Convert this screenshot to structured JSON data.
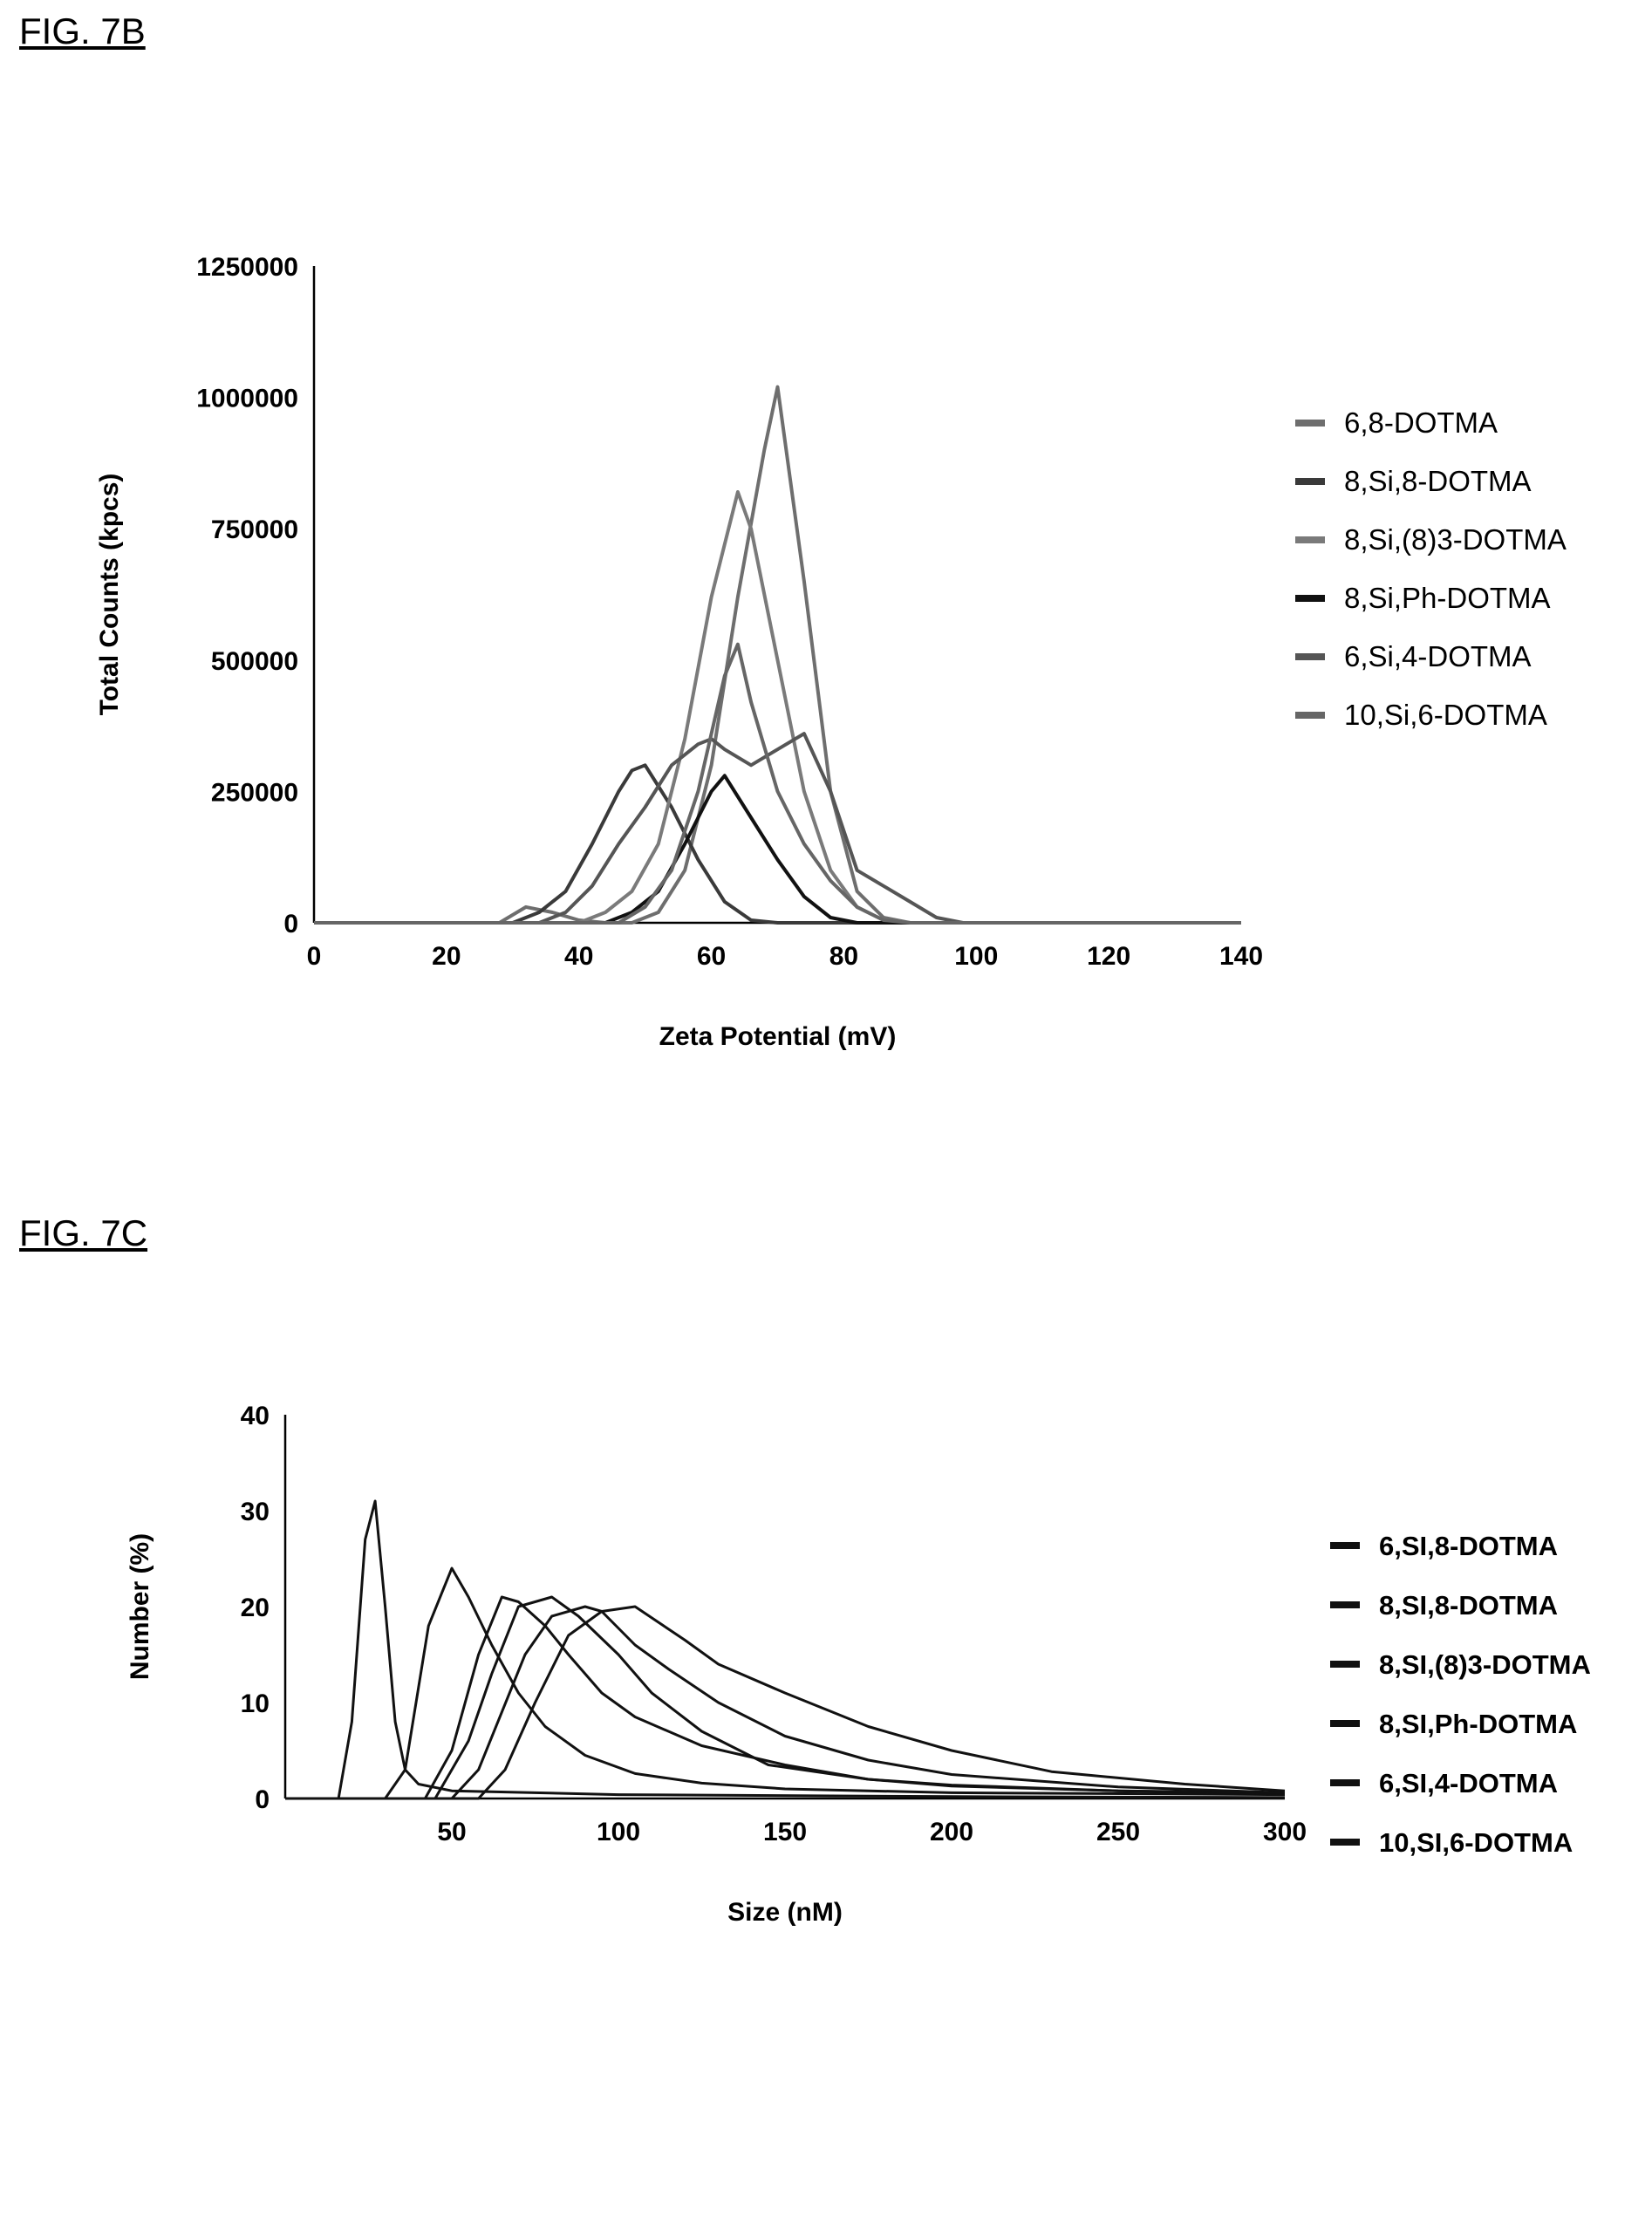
{
  "figures": {
    "fig7b_label": "FIG. 7B",
    "fig7c_label": "FIG. 7C"
  },
  "chart_data": [
    {
      "type": "line",
      "title": "",
      "xlabel": "Zeta Potential (mV)",
      "ylabel": "Total Counts (kpcs)",
      "xlim": [
        0,
        140
      ],
      "ylim": [
        0,
        1250000
      ],
      "x_ticks": [
        "0",
        "20",
        "40",
        "60",
        "80",
        "100",
        "120",
        "140"
      ],
      "y_ticks": [
        "0",
        "250000",
        "500000",
        "750000",
        "1000000",
        "1250000"
      ],
      "legend_position": "right",
      "grid": false,
      "series": [
        {
          "name": "6,8-DOTMA",
          "color": "#6e6e6e",
          "points": [
            [
              0,
              0
            ],
            [
              28,
              0
            ],
            [
              32,
              30000
            ],
            [
              36,
              20000
            ],
            [
              40,
              5000
            ],
            [
              44,
              0
            ],
            [
              48,
              0
            ],
            [
              52,
              20000
            ],
            [
              56,
              100000
            ],
            [
              60,
              300000
            ],
            [
              64,
              620000
            ],
            [
              68,
              900000
            ],
            [
              70,
              1020000
            ],
            [
              74,
              650000
            ],
            [
              78,
              250000
            ],
            [
              82,
              60000
            ],
            [
              86,
              10000
            ],
            [
              90,
              0
            ],
            [
              140,
              0
            ]
          ]
        },
        {
          "name": "8,Si,8-DOTMA",
          "color": "#3a3a3a",
          "points": [
            [
              0,
              0
            ],
            [
              30,
              0
            ],
            [
              34,
              20000
            ],
            [
              38,
              60000
            ],
            [
              42,
              150000
            ],
            [
              46,
              250000
            ],
            [
              48,
              290000
            ],
            [
              50,
              300000
            ],
            [
              54,
              220000
            ],
            [
              58,
              120000
            ],
            [
              62,
              40000
            ],
            [
              66,
              5000
            ],
            [
              70,
              0
            ],
            [
              140,
              0
            ]
          ]
        },
        {
          "name": "8,Si,(8)3-DOTMA",
          "color": "#7a7a7a",
          "points": [
            [
              0,
              0
            ],
            [
              40,
              0
            ],
            [
              44,
              20000
            ],
            [
              48,
              60000
            ],
            [
              52,
              150000
            ],
            [
              56,
              350000
            ],
            [
              60,
              620000
            ],
            [
              64,
              820000
            ],
            [
              66,
              750000
            ],
            [
              70,
              500000
            ],
            [
              74,
              250000
            ],
            [
              78,
              100000
            ],
            [
              82,
              30000
            ],
            [
              86,
              5000
            ],
            [
              90,
              0
            ],
            [
              140,
              0
            ]
          ]
        },
        {
          "name": "8,Si,Ph-DOTMA",
          "color": "#111111",
          "points": [
            [
              0,
              0
            ],
            [
              44,
              0
            ],
            [
              48,
              20000
            ],
            [
              52,
              60000
            ],
            [
              56,
              150000
            ],
            [
              60,
              250000
            ],
            [
              62,
              280000
            ],
            [
              66,
              200000
            ],
            [
              70,
              120000
            ],
            [
              74,
              50000
            ],
            [
              78,
              10000
            ],
            [
              82,
              0
            ],
            [
              140,
              0
            ]
          ]
        },
        {
          "name": "6,Si,4-DOTMA",
          "color": "#555555",
          "points": [
            [
              0,
              0
            ],
            [
              34,
              0
            ],
            [
              38,
              20000
            ],
            [
              42,
              70000
            ],
            [
              46,
              150000
            ],
            [
              50,
              220000
            ],
            [
              54,
              300000
            ],
            [
              58,
              340000
            ],
            [
              60,
              350000
            ],
            [
              62,
              330000
            ],
            [
              66,
              300000
            ],
            [
              70,
              330000
            ],
            [
              74,
              360000
            ],
            [
              78,
              250000
            ],
            [
              82,
              100000
            ],
            [
              86,
              70000
            ],
            [
              90,
              40000
            ],
            [
              94,
              10000
            ],
            [
              98,
              0
            ],
            [
              140,
              0
            ]
          ]
        },
        {
          "name": "10,Si,6-DOTMA",
          "color": "#666666",
          "points": [
            [
              0,
              0
            ],
            [
              46,
              0
            ],
            [
              50,
              30000
            ],
            [
              54,
              100000
            ],
            [
              58,
              250000
            ],
            [
              62,
              470000
            ],
            [
              64,
              530000
            ],
            [
              66,
              420000
            ],
            [
              70,
              250000
            ],
            [
              74,
              150000
            ],
            [
              78,
              80000
            ],
            [
              82,
              30000
            ],
            [
              86,
              5000
            ],
            [
              90,
              0
            ],
            [
              140,
              0
            ]
          ]
        }
      ]
    },
    {
      "type": "line",
      "title": "",
      "xlabel": "Size (nM)",
      "ylabel": "Number (%)",
      "xlim": [
        0,
        300
      ],
      "ylim": [
        0,
        40
      ],
      "x_ticks": [
        "50",
        "100",
        "150",
        "200",
        "250",
        "300"
      ],
      "y_ticks": [
        "0",
        "10",
        "20",
        "30",
        "40"
      ],
      "legend_position": "right",
      "grid": false,
      "series": [
        {
          "name": "6,SI,8-DOTMA",
          "color": "#111111",
          "points": [
            [
              0,
              0
            ],
            [
              16,
              0
            ],
            [
              20,
              8
            ],
            [
              24,
              27
            ],
            [
              27,
              31
            ],
            [
              30,
              20
            ],
            [
              33,
              8
            ],
            [
              36,
              3
            ],
            [
              40,
              1.5
            ],
            [
              50,
              0.8
            ],
            [
              100,
              0.4
            ],
            [
              200,
              0.2
            ],
            [
              300,
              0.1
            ]
          ]
        },
        {
          "name": "8,SI,8-DOTMA",
          "color": "#111111",
          "points": [
            [
              0,
              0
            ],
            [
              30,
              0
            ],
            [
              36,
              3
            ],
            [
              43,
              18
            ],
            [
              50,
              24
            ],
            [
              55,
              21
            ],
            [
              62,
              16
            ],
            [
              70,
              11
            ],
            [
              78,
              7.5
            ],
            [
              90,
              4.5
            ],
            [
              105,
              2.6
            ],
            [
              125,
              1.6
            ],
            [
              150,
              1.0
            ],
            [
              200,
              0.6
            ],
            [
              300,
              0.4
            ]
          ]
        },
        {
          "name": "8,SI,(8)3-DOTMA",
          "color": "#111111",
          "points": [
            [
              0,
              0
            ],
            [
              42,
              0
            ],
            [
              50,
              5
            ],
            [
              58,
              15
            ],
            [
              65,
              21
            ],
            [
              70,
              20.5
            ],
            [
              78,
              18
            ],
            [
              85,
              15
            ],
            [
              95,
              11
            ],
            [
              105,
              8.5
            ],
            [
              125,
              5.5
            ],
            [
              150,
              3.5
            ],
            [
              175,
              2
            ],
            [
              200,
              1.3
            ],
            [
              250,
              0.8
            ],
            [
              300,
              0.5
            ]
          ]
        },
        {
          "name": "8,SI,Ph-DOTMA",
          "color": "#111111",
          "points": [
            [
              0,
              0
            ],
            [
              45,
              0
            ],
            [
              55,
              6
            ],
            [
              62,
              13
            ],
            [
              70,
              20
            ],
            [
              80,
              21
            ],
            [
              88,
              19
            ],
            [
              100,
              15
            ],
            [
              110,
              11
            ],
            [
              125,
              7
            ],
            [
              145,
              3.5
            ],
            [
              175,
              2
            ],
            [
              200,
              1.4
            ],
            [
              250,
              0.8
            ],
            [
              300,
              0.6
            ]
          ]
        },
        {
          "name": "6,SI,4-DOTMA",
          "color": "#111111",
          "points": [
            [
              0,
              0
            ],
            [
              50,
              0
            ],
            [
              58,
              3
            ],
            [
              65,
              9
            ],
            [
              72,
              15
            ],
            [
              80,
              19
            ],
            [
              90,
              20
            ],
            [
              95,
              19.5
            ],
            [
              105,
              16
            ],
            [
              115,
              13.5
            ],
            [
              130,
              10
            ],
            [
              150,
              6.5
            ],
            [
              175,
              4
            ],
            [
              200,
              2.5
            ],
            [
              250,
              1.2
            ],
            [
              300,
              0.6
            ]
          ]
        },
        {
          "name": "10,SI,6-DOTMA",
          "color": "#111111",
          "points": [
            [
              0,
              0
            ],
            [
              58,
              0
            ],
            [
              66,
              3
            ],
            [
              75,
              10
            ],
            [
              85,
              17
            ],
            [
              95,
              19.5
            ],
            [
              105,
              20
            ],
            [
              120,
              16.5
            ],
            [
              130,
              14
            ],
            [
              150,
              11
            ],
            [
              175,
              7.5
            ],
            [
              200,
              5
            ],
            [
              230,
              2.8
            ],
            [
              270,
              1.5
            ],
            [
              300,
              0.8
            ]
          ]
        }
      ]
    }
  ]
}
